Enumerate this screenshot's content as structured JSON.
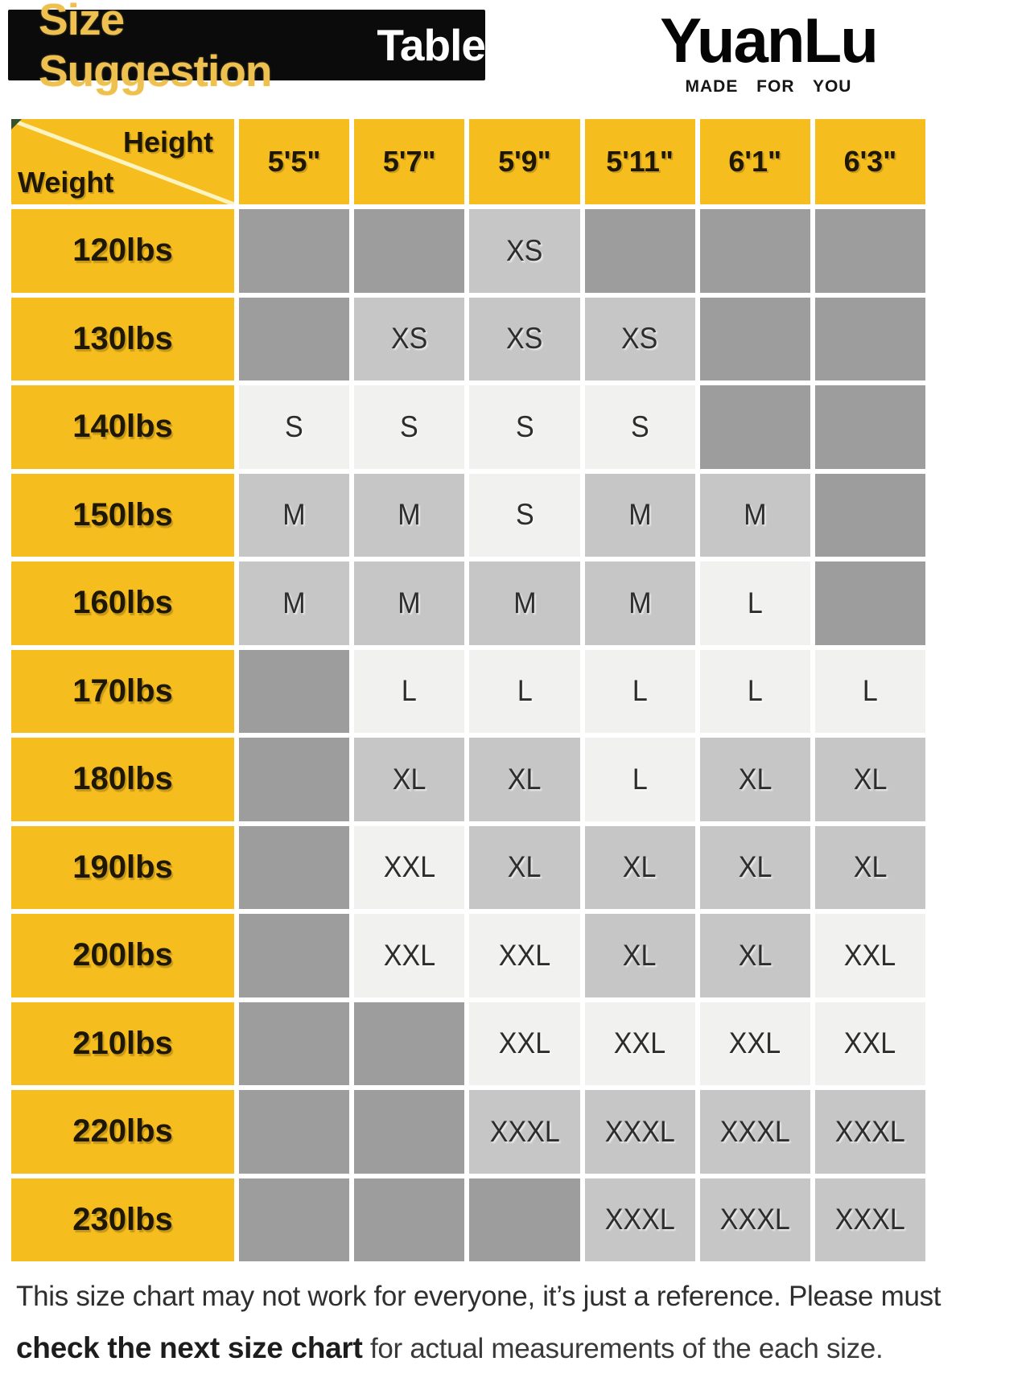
{
  "banner": {
    "title_accent": "Size Suggestion",
    "title_rest": "Table"
  },
  "brand": {
    "name": "YuanLu",
    "tagline": "MADE  FOR  YOU"
  },
  "table": {
    "corner": {
      "top_label": "Height",
      "bottom_label": "Weight"
    },
    "height_columns": [
      "5'5\"",
      "5'7\"",
      "5'9\"",
      "5'11\"",
      "6'1\"",
      "6'3\""
    ],
    "rows": [
      {
        "weight": "120lbs",
        "cells": [
          {
            "size": "",
            "shade": "empty"
          },
          {
            "size": "",
            "shade": "empty"
          },
          {
            "size": "XS",
            "shade": "mid"
          },
          {
            "size": "",
            "shade": "empty"
          },
          {
            "size": "",
            "shade": "empty"
          },
          {
            "size": "",
            "shade": "empty"
          }
        ]
      },
      {
        "weight": "130lbs",
        "cells": [
          {
            "size": "",
            "shade": "empty"
          },
          {
            "size": "XS",
            "shade": "mid"
          },
          {
            "size": "XS",
            "shade": "mid"
          },
          {
            "size": "XS",
            "shade": "mid"
          },
          {
            "size": "",
            "shade": "empty"
          },
          {
            "size": "",
            "shade": "empty"
          }
        ]
      },
      {
        "weight": "140lbs",
        "cells": [
          {
            "size": "S",
            "shade": "light"
          },
          {
            "size": "S",
            "shade": "light"
          },
          {
            "size": "S",
            "shade": "light"
          },
          {
            "size": "S",
            "shade": "light"
          },
          {
            "size": "",
            "shade": "empty"
          },
          {
            "size": "",
            "shade": "empty"
          }
        ]
      },
      {
        "weight": "150lbs",
        "cells": [
          {
            "size": "M",
            "shade": "mid"
          },
          {
            "size": "M",
            "shade": "mid"
          },
          {
            "size": "S",
            "shade": "light"
          },
          {
            "size": "M",
            "shade": "mid"
          },
          {
            "size": "M",
            "shade": "mid"
          },
          {
            "size": "",
            "shade": "empty"
          }
        ]
      },
      {
        "weight": "160lbs",
        "cells": [
          {
            "size": "M",
            "shade": "mid"
          },
          {
            "size": "M",
            "shade": "mid"
          },
          {
            "size": "M",
            "shade": "mid"
          },
          {
            "size": "M",
            "shade": "mid"
          },
          {
            "size": "L",
            "shade": "light"
          },
          {
            "size": "",
            "shade": "empty"
          }
        ]
      },
      {
        "weight": "170lbs",
        "cells": [
          {
            "size": "",
            "shade": "empty"
          },
          {
            "size": "L",
            "shade": "light"
          },
          {
            "size": "L",
            "shade": "light"
          },
          {
            "size": "L",
            "shade": "light"
          },
          {
            "size": "L",
            "shade": "light"
          },
          {
            "size": "L",
            "shade": "light"
          }
        ]
      },
      {
        "weight": "180lbs",
        "cells": [
          {
            "size": "",
            "shade": "empty"
          },
          {
            "size": "XL",
            "shade": "mid"
          },
          {
            "size": "XL",
            "shade": "mid"
          },
          {
            "size": "L",
            "shade": "light"
          },
          {
            "size": "XL",
            "shade": "mid"
          },
          {
            "size": "XL",
            "shade": "mid"
          }
        ]
      },
      {
        "weight": "190lbs",
        "cells": [
          {
            "size": "",
            "shade": "empty"
          },
          {
            "size": "XXL",
            "shade": "light"
          },
          {
            "size": "XL",
            "shade": "mid"
          },
          {
            "size": "XL",
            "shade": "mid"
          },
          {
            "size": "XL",
            "shade": "mid"
          },
          {
            "size": "XL",
            "shade": "mid"
          }
        ]
      },
      {
        "weight": "200lbs",
        "cells": [
          {
            "size": "",
            "shade": "empty"
          },
          {
            "size": "XXL",
            "shade": "light"
          },
          {
            "size": "XXL",
            "shade": "light"
          },
          {
            "size": "XL",
            "shade": "mid"
          },
          {
            "size": "XL",
            "shade": "mid"
          },
          {
            "size": "XXL",
            "shade": "light"
          }
        ]
      },
      {
        "weight": "210lbs",
        "cells": [
          {
            "size": "",
            "shade": "empty"
          },
          {
            "size": "",
            "shade": "empty"
          },
          {
            "size": "XXL",
            "shade": "light"
          },
          {
            "size": "XXL",
            "shade": "light"
          },
          {
            "size": "XXL",
            "shade": "light"
          },
          {
            "size": "XXL",
            "shade": "light"
          }
        ]
      },
      {
        "weight": "220lbs",
        "cells": [
          {
            "size": "",
            "shade": "empty"
          },
          {
            "size": "",
            "shade": "empty"
          },
          {
            "size": "XXXL",
            "shade": "mid"
          },
          {
            "size": "XXXL",
            "shade": "mid"
          },
          {
            "size": "XXXL",
            "shade": "mid"
          },
          {
            "size": "XXXL",
            "shade": "mid"
          }
        ]
      },
      {
        "weight": "230lbs",
        "cells": [
          {
            "size": "",
            "shade": "empty"
          },
          {
            "size": "",
            "shade": "empty"
          },
          {
            "size": "",
            "shade": "empty"
          },
          {
            "size": "XXXL",
            "shade": "mid"
          },
          {
            "size": "XXXL",
            "shade": "mid"
          },
          {
            "size": "XXXL",
            "shade": "mid"
          }
        ]
      }
    ]
  },
  "footer": {
    "line1": "This size chart may not work for everyone, it’s just a reference. Please must",
    "line2_bold": "check the next size chart",
    "line2_rest": " for actual measurements of the each size."
  },
  "colors": {
    "yellow": "#f6bd1e",
    "banner_bg": "#0b0b0b",
    "banner_accent": "#eec04f",
    "empty_cell": "#9d9d9d",
    "filled_cell_gray": "#c6c6c6",
    "filled_cell_light": "#f1f1ef"
  },
  "chart_data": {
    "type": "table",
    "title": "Size Suggestion Table",
    "columns_axis": "Height",
    "rows_axis": "Weight",
    "columns": [
      "5'5\"",
      "5'7\"",
      "5'9\"",
      "5'11\"",
      "6'1\"",
      "6'3\""
    ],
    "rows": [
      "120lbs",
      "130lbs",
      "140lbs",
      "150lbs",
      "160lbs",
      "170lbs",
      "180lbs",
      "190lbs",
      "200lbs",
      "210lbs",
      "220lbs",
      "230lbs"
    ],
    "values": [
      [
        "",
        "",
        "XS",
        "",
        "",
        ""
      ],
      [
        "",
        "XS",
        "XS",
        "XS",
        "",
        ""
      ],
      [
        "S",
        "S",
        "S",
        "S",
        "",
        ""
      ],
      [
        "M",
        "M",
        "S",
        "M",
        "M",
        ""
      ],
      [
        "M",
        "M",
        "M",
        "M",
        "L",
        ""
      ],
      [
        "",
        "L",
        "L",
        "L",
        "L",
        "L"
      ],
      [
        "",
        "XL",
        "XL",
        "L",
        "XL",
        "XL"
      ],
      [
        "",
        "XXL",
        "XL",
        "XL",
        "XL",
        "XL"
      ],
      [
        "",
        "XXL",
        "XXL",
        "XL",
        "XL",
        "XXL"
      ],
      [
        "",
        "",
        "XXL",
        "XXL",
        "XXL",
        "XXL"
      ],
      [
        "",
        "",
        "XXXL",
        "XXXL",
        "XXXL",
        "XXXL"
      ],
      [
        "",
        "",
        "",
        "XXXL",
        "XXXL",
        "XXXL"
      ]
    ]
  }
}
